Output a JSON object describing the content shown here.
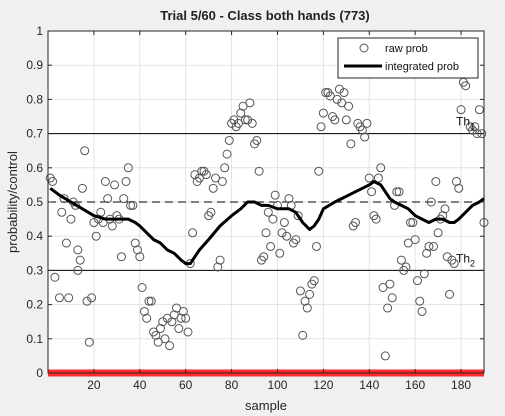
{
  "chart_data": {
    "type": "scatter",
    "title": "Trial 5/60 - Class both hands (773)",
    "xlabel": "sample",
    "ylabel": "probability/control",
    "xlim": [
      0,
      190
    ],
    "ylim": [
      0,
      1
    ],
    "xticks": [
      20,
      40,
      60,
      80,
      100,
      120,
      140,
      160,
      180
    ],
    "yticks": [
      0,
      0.1,
      0.2,
      0.3,
      0.4,
      0.5,
      0.6,
      0.7,
      0.8,
      0.9,
      1
    ],
    "xtick_labels": [
      "20",
      "40",
      "60",
      "80",
      "100",
      "120",
      "140",
      "160",
      "180"
    ],
    "ytick_labels": [
      "0",
      "0.1",
      "0.2",
      "0.3",
      "0.4",
      "0.5",
      "0.6",
      "0.7",
      "0.8",
      "0.9",
      "1"
    ],
    "grid": true,
    "legend_position": "top-right",
    "legend": [
      "raw prob",
      "integrated prob"
    ],
    "thresholds": [
      {
        "label_main": "Th",
        "label_sub": "1",
        "value": 0.7,
        "style": "solid"
      },
      {
        "label_main": "Th",
        "label_sub": "2",
        "value": 0.3,
        "style": "solid"
      }
    ],
    "reference_line": {
      "value": 0.5,
      "style": "dashed"
    },
    "baseline": {
      "value": 0,
      "color": "#ff2a2a"
    },
    "series": [
      {
        "name": "raw prob",
        "marker": "open-circle",
        "color": "#555555",
        "points": [
          [
            1,
            0.57
          ],
          [
            2,
            0.56
          ],
          [
            3,
            0.28
          ],
          [
            5,
            0.22
          ],
          [
            6,
            0.47
          ],
          [
            7,
            0.51
          ],
          [
            8,
            0.38
          ],
          [
            9,
            0.22
          ],
          [
            10,
            0.45
          ],
          [
            11,
            0.5
          ],
          [
            12,
            0.49
          ],
          [
            13,
            0.36
          ],
          [
            13,
            0.3
          ],
          [
            14,
            0.33
          ],
          [
            15,
            0.54
          ],
          [
            16,
            0.65
          ],
          [
            17,
            0.21
          ],
          [
            18,
            0.09
          ],
          [
            19,
            0.22
          ],
          [
            20,
            0.44
          ],
          [
            21,
            0.4
          ],
          [
            22,
            0.45
          ],
          [
            23,
            0.47
          ],
          [
            24,
            0.44
          ],
          [
            25,
            0.56
          ],
          [
            26,
            0.51
          ],
          [
            27,
            0.45
          ],
          [
            28,
            0.43
          ],
          [
            29,
            0.55
          ],
          [
            30,
            0.46
          ],
          [
            31,
            0.45
          ],
          [
            32,
            0.34
          ],
          [
            33,
            0.51
          ],
          [
            34,
            0.56
          ],
          [
            35,
            0.6
          ],
          [
            36,
            0.49
          ],
          [
            37,
            0.49
          ],
          [
            38,
            0.38
          ],
          [
            39,
            0.36
          ],
          [
            40,
            0.34
          ],
          [
            41,
            0.25
          ],
          [
            42,
            0.18
          ],
          [
            43,
            0.16
          ],
          [
            44,
            0.21
          ],
          [
            45,
            0.21
          ],
          [
            46,
            0.12
          ],
          [
            47,
            0.11
          ],
          [
            48,
            0.09
          ],
          [
            49,
            0.13
          ],
          [
            50,
            0.15
          ],
          [
            51,
            0.1
          ],
          [
            52,
            0.16
          ],
          [
            53,
            0.08
          ],
          [
            54,
            0.15
          ],
          [
            55,
            0.17
          ],
          [
            56,
            0.19
          ],
          [
            57,
            0.13
          ],
          [
            58,
            0.16
          ],
          [
            59,
            0.18
          ],
          [
            60,
            0.16
          ],
          [
            61,
            0.12
          ],
          [
            62,
            0.32
          ],
          [
            63,
            0.41
          ],
          [
            64,
            0.58
          ],
          [
            65,
            0.56
          ],
          [
            66,
            0.57
          ],
          [
            67,
            0.59
          ],
          [
            68,
            0.59
          ],
          [
            69,
            0.58
          ],
          [
            70,
            0.46
          ],
          [
            71,
            0.47
          ],
          [
            72,
            0.54
          ],
          [
            73,
            0.57
          ],
          [
            74,
            0.31
          ],
          [
            75,
            0.33
          ],
          [
            76,
            0.56
          ],
          [
            77,
            0.6
          ],
          [
            78,
            0.64
          ],
          [
            79,
            0.68
          ],
          [
            80,
            0.73
          ],
          [
            81,
            0.74
          ],
          [
            82,
            0.72
          ],
          [
            83,
            0.73
          ],
          [
            84,
            0.76
          ],
          [
            85,
            0.78
          ],
          [
            86,
            0.74
          ],
          [
            87,
            0.74
          ],
          [
            88,
            0.79
          ],
          [
            89,
            0.73
          ],
          [
            90,
            0.67
          ],
          [
            91,
            0.68
          ],
          [
            92,
            0.59
          ],
          [
            93,
            0.33
          ],
          [
            94,
            0.34
          ],
          [
            95,
            0.41
          ],
          [
            96,
            0.47
          ],
          [
            97,
            0.37
          ],
          [
            98,
            0.45
          ],
          [
            99,
            0.52
          ],
          [
            100,
            0.49
          ],
          [
            101,
            0.35
          ],
          [
            102,
            0.41
          ],
          [
            103,
            0.44
          ],
          [
            104,
            0.4
          ],
          [
            105,
            0.51
          ],
          [
            106,
            0.49
          ],
          [
            107,
            0.38
          ],
          [
            108,
            0.39
          ],
          [
            109,
            0.46
          ],
          [
            110,
            0.24
          ],
          [
            111,
            0.11
          ],
          [
            112,
            0.21
          ],
          [
            113,
            0.19
          ],
          [
            114,
            0.23
          ],
          [
            115,
            0.26
          ],
          [
            116,
            0.27
          ],
          [
            117,
            0.37
          ],
          [
            118,
            0.59
          ],
          [
            119,
            0.72
          ],
          [
            120,
            0.76
          ],
          [
            121,
            0.82
          ],
          [
            122,
            0.82
          ],
          [
            123,
            0.81
          ],
          [
            124,
            0.75
          ],
          [
            125,
            0.74
          ],
          [
            126,
            0.8
          ],
          [
            127,
            0.83
          ],
          [
            128,
            0.79
          ],
          [
            129,
            0.82
          ],
          [
            130,
            0.74
          ],
          [
            131,
            0.78
          ],
          [
            132,
            0.67
          ],
          [
            133,
            0.43
          ],
          [
            134,
            0.44
          ],
          [
            135,
            0.73
          ],
          [
            136,
            0.72
          ],
          [
            137,
            0.71
          ],
          [
            138,
            0.69
          ],
          [
            139,
            0.73
          ],
          [
            140,
            0.57
          ],
          [
            141,
            0.53
          ],
          [
            142,
            0.46
          ],
          [
            143,
            0.45
          ],
          [
            144,
            0.57
          ],
          [
            145,
            0.6
          ],
          [
            146,
            0.25
          ],
          [
            147,
            0.05
          ],
          [
            148,
            0.19
          ],
          [
            149,
            0.26
          ],
          [
            150,
            0.22
          ],
          [
            151,
            0.49
          ],
          [
            152,
            0.53
          ],
          [
            153,
            0.53
          ],
          [
            154,
            0.33
          ],
          [
            155,
            0.3
          ],
          [
            156,
            0.31
          ],
          [
            157,
            0.38
          ],
          [
            158,
            0.44
          ],
          [
            159,
            0.44
          ],
          [
            160,
            0.39
          ],
          [
            161,
            0.27
          ],
          [
            162,
            0.21
          ],
          [
            163,
            0.18
          ],
          [
            164,
            0.29
          ],
          [
            165,
            0.35
          ],
          [
            166,
            0.37
          ],
          [
            167,
            0.5
          ],
          [
            168,
            0.37
          ],
          [
            169,
            0.56
          ],
          [
            170,
            0.41
          ],
          [
            171,
            0.45
          ],
          [
            172,
            0.46
          ],
          [
            173,
            0.48
          ],
          [
            174,
            0.34
          ],
          [
            175,
            0.23
          ],
          [
            176,
            0.33
          ],
          [
            177,
            0.32
          ],
          [
            178,
            0.56
          ],
          [
            179,
            0.54
          ],
          [
            180,
            0.77
          ],
          [
            181,
            0.85
          ],
          [
            182,
            0.84
          ],
          [
            183,
            0.89
          ],
          [
            184,
            0.72
          ],
          [
            185,
            0.71
          ],
          [
            186,
            0.72
          ],
          [
            187,
            0.7
          ],
          [
            188,
            0.77
          ],
          [
            189,
            0.7
          ],
          [
            190,
            0.44
          ]
        ]
      },
      {
        "name": "integrated prob",
        "marker": "none",
        "line_width": 3,
        "color": "#000000",
        "points": [
          [
            1,
            0.54
          ],
          [
            5,
            0.52
          ],
          [
            10,
            0.5
          ],
          [
            15,
            0.48
          ],
          [
            20,
            0.46
          ],
          [
            25,
            0.45
          ],
          [
            30,
            0.45
          ],
          [
            35,
            0.45
          ],
          [
            38,
            0.44
          ],
          [
            40,
            0.43
          ],
          [
            43,
            0.41
          ],
          [
            46,
            0.39
          ],
          [
            49,
            0.38
          ],
          [
            52,
            0.36
          ],
          [
            55,
            0.35
          ],
          [
            58,
            0.33
          ],
          [
            60,
            0.32
          ],
          [
            62,
            0.32
          ],
          [
            64,
            0.34
          ],
          [
            66,
            0.36
          ],
          [
            70,
            0.39
          ],
          [
            75,
            0.43
          ],
          [
            80,
            0.46
          ],
          [
            84,
            0.48
          ],
          [
            87,
            0.5
          ],
          [
            90,
            0.5
          ],
          [
            93,
            0.49
          ],
          [
            96,
            0.49
          ],
          [
            100,
            0.48
          ],
          [
            105,
            0.48
          ],
          [
            108,
            0.47
          ],
          [
            111,
            0.44
          ],
          [
            114,
            0.42
          ],
          [
            116,
            0.43
          ],
          [
            118,
            0.45
          ],
          [
            120,
            0.48
          ],
          [
            125,
            0.5
          ],
          [
            128,
            0.51
          ],
          [
            131,
            0.52
          ],
          [
            134,
            0.53
          ],
          [
            137,
            0.54
          ],
          [
            140,
            0.55
          ],
          [
            142,
            0.56
          ],
          [
            145,
            0.55
          ],
          [
            147,
            0.53
          ],
          [
            149,
            0.51
          ],
          [
            151,
            0.5
          ],
          [
            154,
            0.49
          ],
          [
            157,
            0.48
          ],
          [
            160,
            0.46
          ],
          [
            163,
            0.45
          ],
          [
            166,
            0.44
          ],
          [
            169,
            0.45
          ],
          [
            172,
            0.45
          ],
          [
            175,
            0.44
          ],
          [
            177,
            0.44
          ],
          [
            179,
            0.45
          ],
          [
            182,
            0.47
          ],
          [
            185,
            0.49
          ],
          [
            188,
            0.5
          ],
          [
            190,
            0.51
          ]
        ]
      }
    ]
  }
}
